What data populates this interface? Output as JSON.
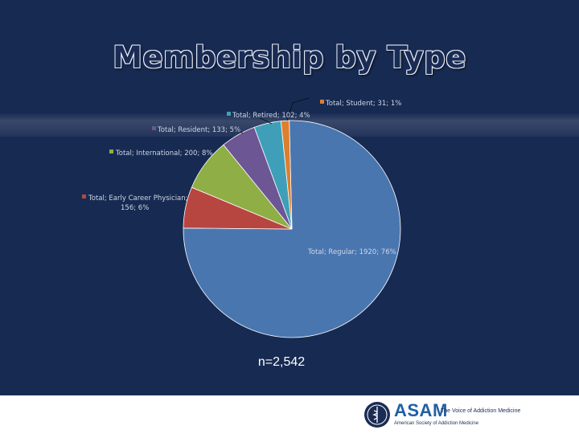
{
  "slide": {
    "title": "Membership by Type",
    "note": "n=2,542"
  },
  "colors": {
    "background": "#172a52",
    "Regular": "#4a76b0",
    "Early Career Physician": "#b84640",
    "International": "#8fae45",
    "Resident": "#6d5694",
    "Retired": "#3f9fb8",
    "Student": "#dc7f2f"
  },
  "chart_data": {
    "type": "pie",
    "series_name": "Total",
    "slices": [
      {
        "category": "Regular",
        "value": 1920,
        "percent": "76%",
        "label": "Total; Regular; 1920; 76%"
      },
      {
        "category": "Early Career Physician",
        "value": 156,
        "percent": "6%",
        "label_line1": "Total; Early Career Physician;",
        "label_line2": "156; 6%"
      },
      {
        "category": "International",
        "value": 200,
        "percent": "8%",
        "label": "Total; International; 200; 8%"
      },
      {
        "category": "Resident",
        "value": 133,
        "percent": "5%",
        "label": "Total; Resident; 133; 5%"
      },
      {
        "category": "Retired",
        "value": 102,
        "percent": "4%",
        "label": "Total; Retired; 102; 4%"
      },
      {
        "category": "Student",
        "value": 31,
        "percent": "1%",
        "label": "Total; Student; 31; 1%"
      }
    ]
  },
  "logo": {
    "wordmark": "ASAM",
    "tagline": "The Voice of Addiction Medicine",
    "org_name": "American Society of Addiction Medicine"
  }
}
